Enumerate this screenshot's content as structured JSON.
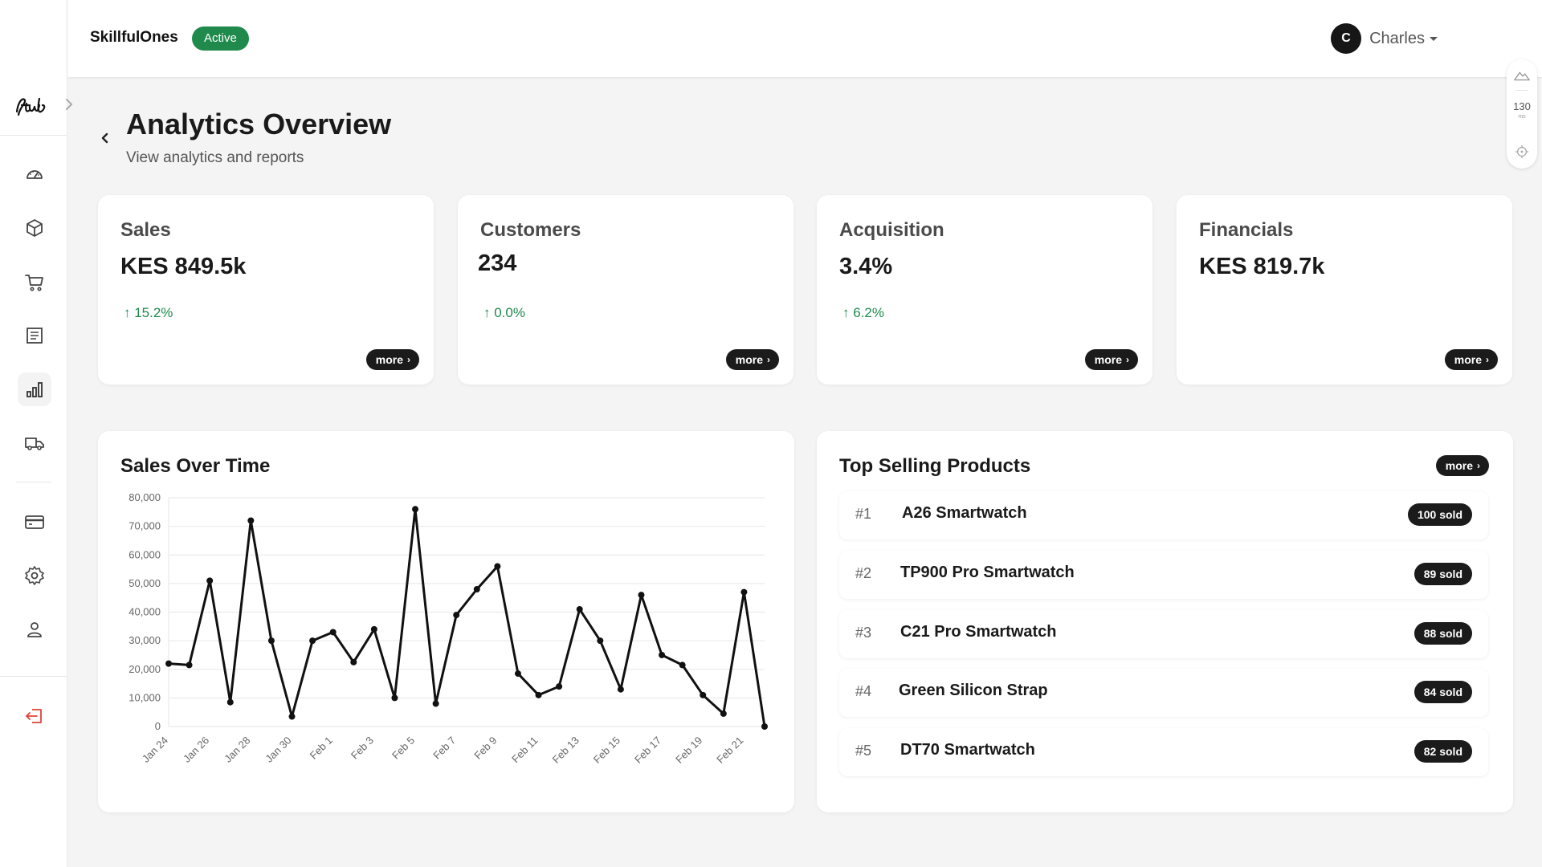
{
  "header": {
    "brand": "SkillfulOnes",
    "status": "Active",
    "user": {
      "initial": "C",
      "name": "Charles"
    }
  },
  "widget": {
    "value": "130",
    "unit": "ms"
  },
  "page": {
    "title": "Analytics Overview",
    "subtitle": "View analytics and reports"
  },
  "stats": [
    {
      "title": "Sales",
      "value": "KES 849.5k",
      "change": "↑ 15.2%",
      "more": "more"
    },
    {
      "title": "Customers",
      "value": "234",
      "change": "↑ 0.0%",
      "more": "more"
    },
    {
      "title": "Acquisition",
      "value": "3.4%",
      "change": "↑ 6.2%",
      "more": "more"
    },
    {
      "title": "Financials",
      "value": "KES 819.7k",
      "change": "",
      "more": "more"
    }
  ],
  "sales_chart": {
    "title": "Sales Over Time"
  },
  "top_products": {
    "title": "Top Selling Products",
    "more": "more",
    "items": [
      {
        "rank": "#1",
        "name": "A26 Smartwatch",
        "sold": "100 sold"
      },
      {
        "rank": "#2",
        "name": "TP900 Pro Smartwatch",
        "sold": "89 sold"
      },
      {
        "rank": "#3",
        "name": "C21 Pro Smartwatch",
        "sold": "88 sold"
      },
      {
        "rank": "#4",
        "name": "Green Silicon Strap",
        "sold": "84 sold"
      },
      {
        "rank": "#5",
        "name": "DT70 Smartwatch",
        "sold": "82 sold"
      }
    ]
  },
  "icons": {
    "nav": [
      "dashboard-icon",
      "box-icon",
      "cart-icon",
      "orders-icon",
      "analytics-icon",
      "delivery-icon",
      "payments-icon",
      "settings-icon",
      "user-icon",
      "logout-icon"
    ]
  },
  "colors": {
    "accent_green": "#1f8a4c",
    "dark": "#1b1b1b",
    "logout_red": "#e0413a"
  },
  "chart_data": {
    "type": "line",
    "title": "Sales Over Time",
    "xlabel": "",
    "ylabel": "",
    "ylim": [
      0,
      80000
    ],
    "y_ticks": [
      0,
      10000,
      20000,
      30000,
      40000,
      50000,
      60000,
      70000,
      80000
    ],
    "y_tick_labels": [
      "0",
      "10,000",
      "20,000",
      "30,000",
      "40,000",
      "50,000",
      "60,000",
      "70,000",
      "80,000"
    ],
    "x_tick_labels": [
      "Jan 24",
      "Jan 26",
      "Jan 28",
      "Jan 30",
      "Feb 1",
      "Feb 3",
      "Feb 5",
      "Feb 7",
      "Feb 9",
      "Feb 11",
      "Feb 13",
      "Feb 15",
      "Feb 17",
      "Feb 19",
      "Feb 21"
    ],
    "grid": true,
    "series": [
      {
        "values": [
          22000,
          21500,
          51000,
          8500,
          72000,
          30000,
          3500,
          30000,
          33000,
          22500,
          34000,
          10000,
          76000,
          8000,
          39000,
          48000,
          56000,
          18500,
          11000,
          14000,
          41000,
          30000,
          13000,
          46000,
          25000,
          21500,
          11000,
          4500,
          47000,
          0
        ]
      }
    ]
  }
}
